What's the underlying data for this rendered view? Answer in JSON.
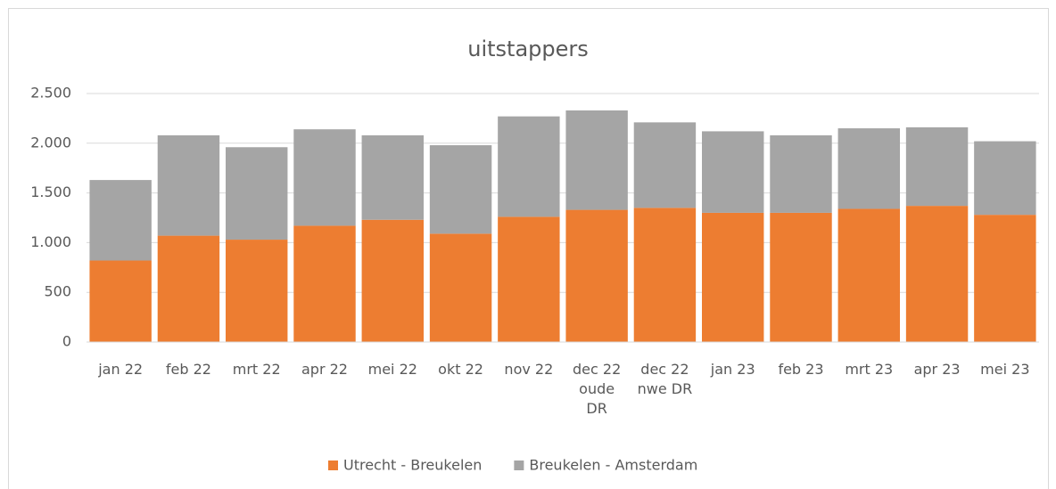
{
  "chart_data": {
    "type": "stacked_bar",
    "title": "uitstappers",
    "categories": [
      "jan 22",
      "feb 22",
      "mrt 22",
      "apr 22",
      "mei 22",
      "okt 22",
      "nov 22",
      "dec 22\noude\nDR",
      "dec 22\nnwe DR",
      "jan 23",
      "feb 23",
      "mrt 23",
      "apr 23",
      "mei 23"
    ],
    "series": [
      {
        "name": "Utrecht - Breukelen",
        "color": "#ed7d31",
        "values": [
          820,
          1070,
          1030,
          1170,
          1230,
          1090,
          1260,
          1330,
          1350,
          1300,
          1300,
          1340,
          1370,
          1280
        ]
      },
      {
        "name": "Breukelen - Amsterdam",
        "color": "#a5a5a5",
        "values": [
          810,
          1010,
          930,
          970,
          850,
          890,
          1010,
          1000,
          860,
          820,
          780,
          810,
          790,
          740
        ]
      }
    ],
    "ylim": [
      0,
      2500
    ],
    "yticks": [
      0,
      500,
      {
        "value": 1000,
        "label": "1.000"
      },
      {
        "value": 1500,
        "label": "1.500"
      },
      {
        "value": 2000,
        "label": "2.000"
      },
      {
        "value": 2500,
        "label": "2.500"
      }
    ],
    "grid": true,
    "legend": "bottom"
  }
}
